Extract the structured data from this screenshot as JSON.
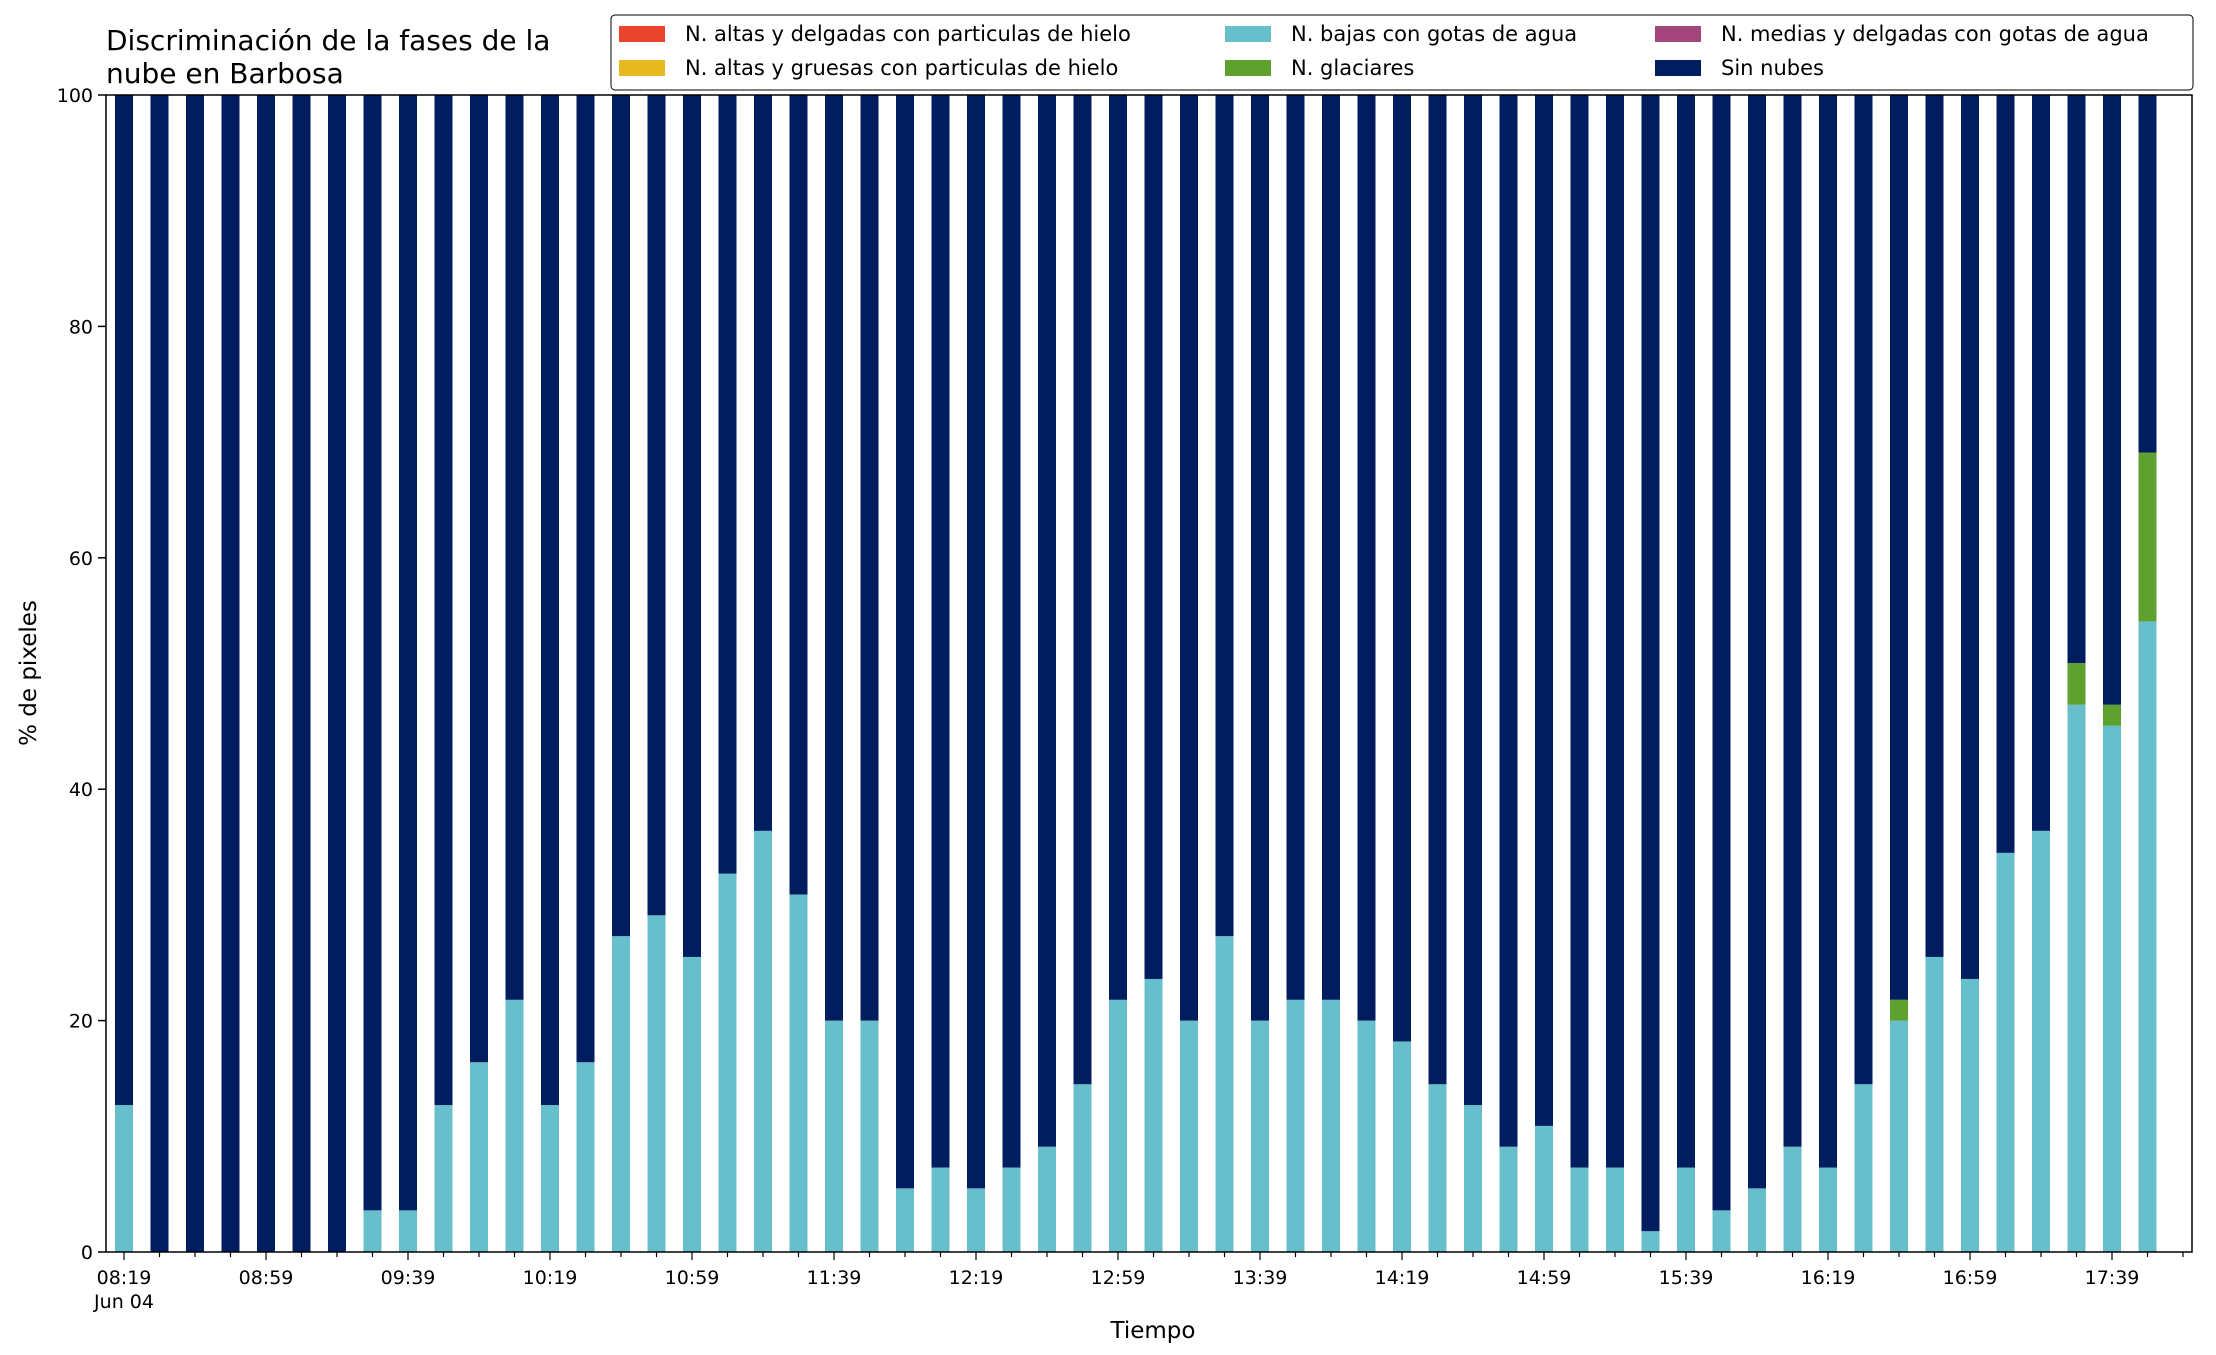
{
  "chart_data": {
    "type": "bar",
    "stacked": true,
    "title_lines": [
      "Discriminación de la fases de la",
      "nube en Barbosa"
    ],
    "xlabel": "Tiempo",
    "ylabel": "% de pixeles",
    "ylim": [
      0,
      100
    ],
    "yticks": [
      0,
      20,
      40,
      60,
      80,
      100
    ],
    "grid": false,
    "legend_position": "top-right",
    "x_tick_labels": [
      "08:19",
      "08:59",
      "09:39",
      "10:19",
      "10:59",
      "11:39",
      "12:19",
      "12:59",
      "13:39",
      "14:19",
      "14:59",
      "15:39",
      "16:19",
      "16:59",
      "17:39"
    ],
    "x_date_label": "Jun 04",
    "categories": [
      "08:19",
      "08:29",
      "08:39",
      "08:49",
      "08:59",
      "09:09",
      "09:19",
      "09:29",
      "09:39",
      "09:49",
      "09:59",
      "10:09",
      "10:19",
      "10:29",
      "10:39",
      "10:49",
      "10:59",
      "11:09",
      "11:19",
      "11:29",
      "11:39",
      "11:49",
      "11:59",
      "12:09",
      "12:19",
      "12:29",
      "12:39",
      "12:49",
      "12:59",
      "13:09",
      "13:19",
      "13:29",
      "13:39",
      "13:49",
      "13:59",
      "14:09",
      "14:19",
      "14:29",
      "14:39",
      "14:49",
      "14:59",
      "15:09",
      "15:19",
      "15:29",
      "15:39",
      "15:49",
      "15:59",
      "16:09",
      "16:19",
      "16:29",
      "16:39",
      "16:49",
      "16:59",
      "17:09",
      "17:19",
      "17:29",
      "17:39",
      "17:49"
    ],
    "series": [
      {
        "name": "N. altas y delgadas con particulas de hielo",
        "color": "#e8442e",
        "values": [
          0,
          0,
          0,
          0,
          0,
          0,
          0,
          0,
          0,
          0,
          0,
          0,
          0,
          0,
          0,
          0,
          0,
          0,
          0,
          0,
          0,
          0,
          0,
          0,
          0,
          0,
          0,
          0,
          0,
          0,
          0,
          0,
          0,
          0,
          0,
          0,
          0,
          0,
          0,
          0,
          0,
          0,
          0,
          0,
          0,
          0,
          0,
          0,
          0,
          0,
          0,
          0,
          0,
          0,
          0,
          0,
          0,
          0
        ]
      },
      {
        "name": "N. altas y gruesas con particulas de hielo",
        "color": "#e6b91f",
        "values": [
          0,
          0,
          0,
          0,
          0,
          0,
          0,
          0,
          0,
          0,
          0,
          0,
          0,
          0,
          0,
          0,
          0,
          0,
          0,
          0,
          0,
          0,
          0,
          0,
          0,
          0,
          0,
          0,
          0,
          0,
          0,
          0,
          0,
          0,
          0,
          0,
          0,
          0,
          0,
          0,
          0,
          0,
          0,
          0,
          0,
          0,
          0,
          0,
          0,
          0,
          0,
          0,
          0,
          0,
          0,
          0,
          0,
          0
        ]
      },
      {
        "name": "N. bajas con gotas de agua",
        "color": "#67bfcb",
        "values": [
          12.7,
          0,
          0,
          0,
          0,
          0,
          0,
          3.6,
          3.6,
          12.7,
          16.4,
          21.8,
          12.7,
          16.4,
          27.3,
          29.1,
          25.5,
          32.7,
          36.4,
          30.9,
          20,
          20,
          5.5,
          7.3,
          5.5,
          7.3,
          9.1,
          14.5,
          21.8,
          23.6,
          20,
          27.3,
          20,
          21.8,
          21.8,
          20,
          18.2,
          14.5,
          12.7,
          9.1,
          10.9,
          7.3,
          7.3,
          1.8,
          7.3,
          3.6,
          5.5,
          9.1,
          7.3,
          14.5,
          20,
          25.5,
          23.6,
          34.5,
          36.4,
          47.3,
          45.5,
          54.5
        ]
      },
      {
        "name": "N. glaciares",
        "color": "#5fa12e",
        "values": [
          0,
          0,
          0,
          0,
          0,
          0,
          0,
          0,
          0,
          0,
          0,
          0,
          0,
          0,
          0,
          0,
          0,
          0,
          0,
          0,
          0,
          0,
          0,
          0,
          0,
          0,
          0,
          0,
          0,
          0,
          0,
          0,
          0,
          0,
          0,
          0,
          0,
          0,
          0,
          0,
          0,
          0,
          0,
          0,
          0,
          0,
          0,
          0,
          0,
          0,
          1.8,
          0,
          0,
          0,
          0,
          3.6,
          1.8,
          14.6
        ]
      },
      {
        "name": "N. medias y delgadas con gotas de agua",
        "color": "#a4457c",
        "values": [
          0,
          0,
          0,
          0,
          0,
          0,
          0,
          0,
          0,
          0,
          0,
          0,
          0,
          0,
          0,
          0,
          0,
          0,
          0,
          0,
          0,
          0,
          0,
          0,
          0,
          0,
          0,
          0,
          0,
          0,
          0,
          0,
          0,
          0,
          0,
          0,
          0,
          0,
          0,
          0,
          0,
          0,
          0,
          0,
          0,
          0,
          0,
          0,
          0,
          0,
          0,
          0,
          0,
          0,
          0,
          0,
          0,
          0
        ]
      },
      {
        "name": "Sin nubes",
        "color": "#001e5f",
        "values": [
          87.3,
          100,
          100,
          100,
          100,
          100,
          100,
          96.4,
          96.4,
          87.3,
          83.6,
          78.2,
          87.3,
          83.6,
          72.7,
          70.9,
          74.5,
          67.3,
          63.6,
          69.1,
          80,
          80,
          94.5,
          92.7,
          94.5,
          92.7,
          90.9,
          85.5,
          78.2,
          76.4,
          80,
          72.7,
          80,
          78.2,
          78.2,
          80,
          81.8,
          85.5,
          87.3,
          90.9,
          89.1,
          92.7,
          92.7,
          98.2,
          92.7,
          96.4,
          94.5,
          90.9,
          92.7,
          85.5,
          78.2,
          74.5,
          76.4,
          65.5,
          63.6,
          49.1,
          52.7,
          30.9
        ]
      }
    ],
    "legend_order": [
      0,
      1,
      2,
      3,
      4,
      5
    ]
  }
}
